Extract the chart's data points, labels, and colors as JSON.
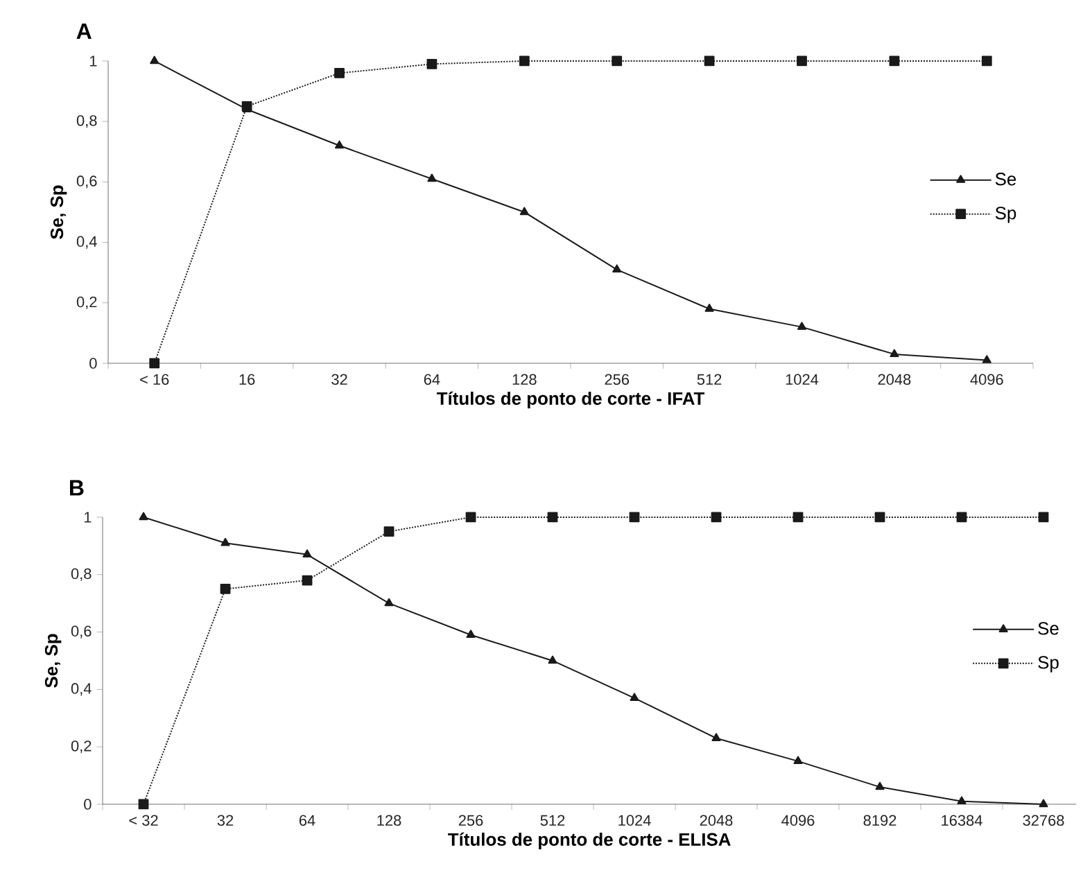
{
  "chart_data": [
    {
      "type": "line",
      "title": "A",
      "xlabel": "Títulos de ponto de corte - IFAT",
      "ylabel": "Se, Sp",
      "categories": [
        "< 16",
        "16",
        "32",
        "64",
        "128",
        "256",
        "512",
        "1024",
        "2048",
        "4096"
      ],
      "series": [
        {
          "name": "Se",
          "color": "#1a1a1a",
          "marker": "triangle",
          "line_style": "solid",
          "values": [
            1,
            0.84,
            0.72,
            0.61,
            0.5,
            0.31,
            0.18,
            0.12,
            0.03,
            0.01
          ]
        },
        {
          "name": "Sp",
          "color": "#1a1a1a",
          "marker": "square",
          "line_style": "dotted",
          "values": [
            0,
            0.85,
            0.96,
            0.99,
            1,
            1,
            1,
            1,
            1,
            1
          ]
        }
      ],
      "ylim": [
        0,
        1
      ],
      "yticks": [
        0,
        {
          "value": 0.2,
          "label": "0,2"
        },
        {
          "value": 0.4,
          "label": "0,4"
        },
        {
          "value": 0.6,
          "label": "0,6"
        },
        {
          "value": 0.8,
          "label": "0,8"
        },
        1
      ],
      "legend": "right"
    },
    {
      "type": "line",
      "title": "B",
      "xlabel": "Títulos de ponto de corte - ELISA",
      "ylabel": "Se, Sp",
      "categories": [
        "< 32",
        "32",
        "64",
        "128",
        "256",
        "512",
        "1024",
        "2048",
        "4096",
        "8192",
        "16384",
        "32768"
      ],
      "series": [
        {
          "name": "Se",
          "color": "#1a1a1a",
          "marker": "triangle",
          "line_style": "solid",
          "values": [
            1,
            0.91,
            0.87,
            0.7,
            0.59,
            0.5,
            0.37,
            0.23,
            0.15,
            0.06,
            0.01,
            0
          ]
        },
        {
          "name": "Sp",
          "color": "#1a1a1a",
          "marker": "square",
          "line_style": "dotted",
          "values": [
            0,
            0.75,
            0.78,
            0.95,
            1,
            1,
            1,
            1,
            1,
            1,
            1,
            1
          ]
        }
      ],
      "ylim": [
        0,
        1
      ],
      "yticks": [
        0,
        {
          "value": 0.2,
          "label": "0,2"
        },
        {
          "value": 0.4,
          "label": "0,4"
        },
        {
          "value": 0.6,
          "label": "0,6"
        },
        {
          "value": 0.8,
          "label": "0,8"
        },
        1
      ],
      "legend": "right"
    }
  ]
}
